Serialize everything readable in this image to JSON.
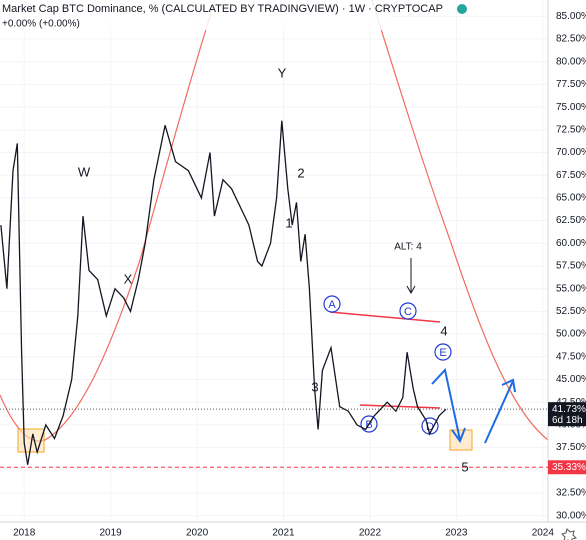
{
  "chart_data": {
    "type": "line",
    "title": "Market Cap BTC Dominance, % (CALCULATED BY TRADINGVIEW) · 1W · CRYPTOCAP",
    "subtitle": "+0.00% (+0.00%)",
    "x": [
      2017.73,
      2017.8,
      2017.87,
      2017.92,
      2017.97,
      2018.0,
      2018.04,
      2018.1,
      2018.15,
      2018.25,
      2018.35,
      2018.45,
      2018.55,
      2018.62,
      2018.68,
      2018.75,
      2018.85,
      2018.95,
      2019.05,
      2019.15,
      2019.23,
      2019.32,
      2019.4,
      2019.5,
      2019.63,
      2019.75,
      2019.9,
      2020.05,
      2020.15,
      2020.2,
      2020.3,
      2020.4,
      2020.5,
      2020.6,
      2020.7,
      2020.75,
      2020.85,
      2020.92,
      2020.98,
      2021.05,
      2021.1,
      2021.15,
      2021.2,
      2021.25,
      2021.3,
      2021.36,
      2021.4,
      2021.45,
      2021.55,
      2021.65,
      2021.75,
      2021.85,
      2021.95,
      2022.05,
      2022.2,
      2022.3,
      2022.38,
      2022.43,
      2022.5,
      2022.55,
      2022.65,
      2022.69,
      2022.8,
      2022.88
    ],
    "series": [
      {
        "color": "#131722",
        "values": [
          62,
          55,
          68,
          71,
          48,
          38,
          35.6,
          39,
          37,
          40,
          38.5,
          41,
          45,
          52,
          63,
          57,
          56,
          52,
          55,
          54,
          52.5,
          56,
          60,
          67,
          73,
          69,
          68,
          65,
          70,
          63,
          67,
          66,
          64,
          62,
          58,
          57.5,
          60,
          65,
          73.5,
          66,
          62,
          64.5,
          58,
          61,
          55,
          44,
          39.5,
          46,
          48.5,
          42,
          41.5,
          40,
          39.5,
          41,
          42.5,
          41.5,
          43,
          48,
          44,
          42,
          40.5,
          39,
          41,
          41.73
        ]
      }
    ],
    "xlim": [
      2017.72,
      2024.06
    ],
    "xticks": [
      2018,
      2019,
      2020,
      2021,
      2022,
      2023,
      2024
    ],
    "ylim": [
      29.3,
      86.8
    ],
    "yticks": [
      {
        "value": 30,
        "label": "30.00%"
      },
      {
        "value": 32.5,
        "label": "32.50%"
      },
      {
        "value": 35,
        "label": "35.00%"
      },
      {
        "value": 37.5,
        "label": "37.50%"
      },
      {
        "value": 40,
        "label": "40.00%"
      },
      {
        "value": 42.5,
        "label": "42.50%"
      },
      {
        "value": 45,
        "label": "45.00%"
      },
      {
        "value": 47.5,
        "label": "47.50%"
      },
      {
        "value": 50,
        "label": "50.00%"
      },
      {
        "value": 52.5,
        "label": "52.50%"
      },
      {
        "value": 55,
        "label": "55.00%"
      },
      {
        "value": 57.5,
        "label": "57.50%"
      },
      {
        "value": 60,
        "label": "60.00%"
      },
      {
        "value": 62.5,
        "label": "62.50%"
      },
      {
        "value": 65,
        "label": "65.00%"
      },
      {
        "value": 67.5,
        "label": "67.50%"
      },
      {
        "value": 70,
        "label": "70.00%"
      },
      {
        "value": 72.5,
        "label": "72.50%"
      },
      {
        "value": 75,
        "label": "75.00%"
      },
      {
        "value": 77.5,
        "label": "77.50%"
      },
      {
        "value": 80,
        "label": "80.00%"
      },
      {
        "value": 82.5,
        "label": "82.50%"
      },
      {
        "value": 85,
        "label": "85.00%"
      }
    ],
    "grid": true,
    "last_price": {
      "value": 41.73,
      "label": "41.73%",
      "countdown": "6d 18h"
    },
    "level": {
      "value": 35.33,
      "label": "35.33%",
      "color": "#f23645"
    },
    "annotations": [
      "W",
      "X",
      "Y",
      "1",
      "2",
      "3",
      "4",
      "5",
      "ALT: 4",
      "A",
      "B",
      "C",
      "D",
      "E"
    ]
  }
}
